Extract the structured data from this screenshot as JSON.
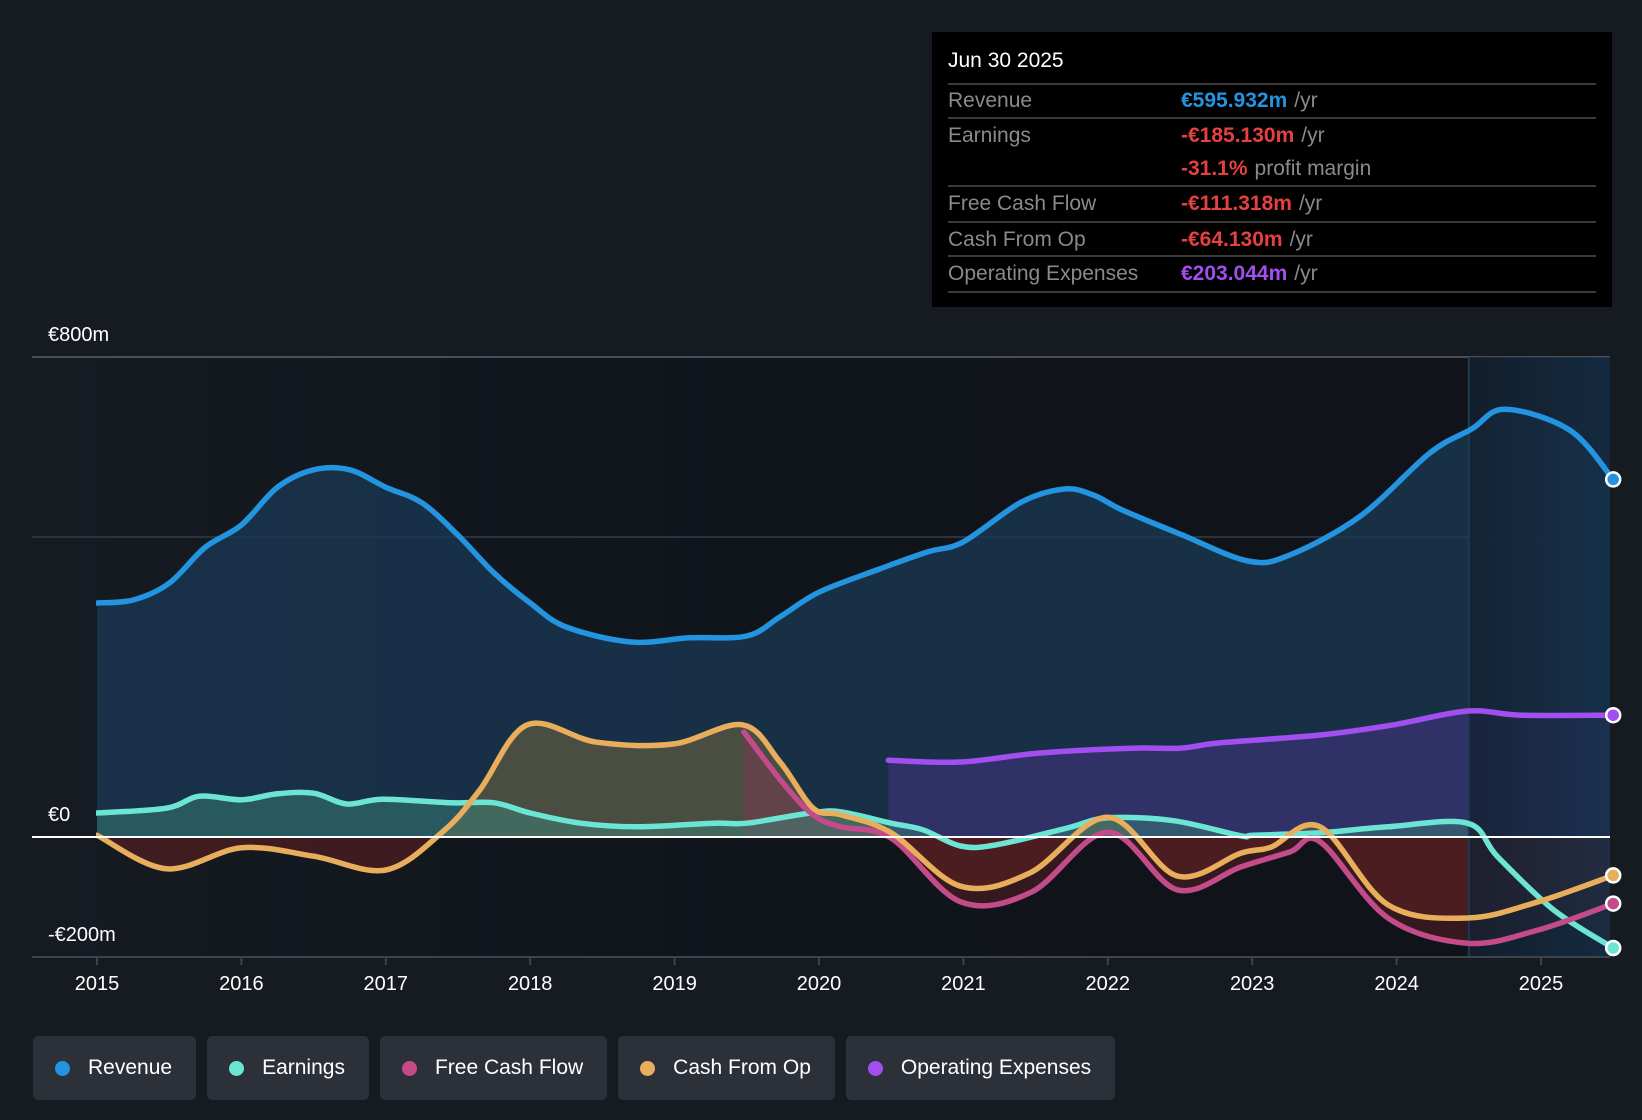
{
  "tooltip": {
    "date": "Jun 30 2025",
    "rows": [
      {
        "label": "Revenue",
        "value": "€595.932m",
        "unit": "/yr",
        "color": "#2394df"
      },
      {
        "label": "Earnings",
        "value": "-€185.130m",
        "unit": "/yr",
        "color": "#e64141"
      },
      {
        "label": "",
        "value": "-31.1%",
        "unit": "profit margin",
        "color": "#e64141"
      },
      {
        "label": "Free Cash Flow",
        "value": "-€111.318m",
        "unit": "/yr",
        "color": "#e64141"
      },
      {
        "label": "Cash From Op",
        "value": "-€64.130m",
        "unit": "/yr",
        "color": "#e64141"
      },
      {
        "label": "Operating Expenses",
        "value": "€203.044m",
        "unit": "/yr",
        "color": "#a24ef0"
      }
    ]
  },
  "legend": [
    {
      "label": "Revenue",
      "color": "#2394df"
    },
    {
      "label": "Earnings",
      "color": "#6ce5d4"
    },
    {
      "label": "Free Cash Flow",
      "color": "#c44b8a"
    },
    {
      "label": "Cash From Op",
      "color": "#e8ae5c"
    },
    {
      "label": "Operating Expenses",
      "color": "#a24ef0"
    }
  ],
  "chart_data": {
    "type": "area",
    "title": "",
    "xlabel": "",
    "ylabel": "",
    "currency": "EUR",
    "x_ticks": [
      "2015",
      "2016",
      "2017",
      "2018",
      "2019",
      "2020",
      "2021",
      "2022",
      "2023",
      "2024",
      "2025"
    ],
    "y_tick_labels": [
      {
        "value": 800,
        "label": "€800m"
      },
      {
        "value": 0,
        "label": "€0"
      },
      {
        "value": -200,
        "label": "-€200m"
      }
    ],
    "gridlines": [
      800,
      500,
      0
    ],
    "ylim": [
      -200,
      800
    ],
    "xlim": [
      2015,
      2025.5
    ],
    "highlight_period": [
      2024.5,
      2025.5
    ],
    "legend_position": "bottom-left",
    "series": [
      {
        "name": "Revenue",
        "color": "#2394df",
        "x": [
          2015.0,
          2015.25,
          2015.5,
          2015.75,
          2016.0,
          2016.25,
          2016.5,
          2016.75,
          2017.0,
          2017.25,
          2017.5,
          2017.75,
          2018.0,
          2018.25,
          2018.7,
          2019.1,
          2019.5,
          2019.73,
          2020.0,
          2020.4,
          2020.75,
          2021.0,
          2021.4,
          2021.7,
          2021.9,
          2022.1,
          2022.5,
          2022.97,
          2023.26,
          2023.75,
          2024.23,
          2024.52,
          2024.75,
          2025.2,
          2025.5
        ],
        "values": [
          390,
          395,
          423,
          483,
          520,
          583,
          612,
          612,
          583,
          557,
          503,
          440,
          390,
          350,
          325,
          332,
          335,
          367,
          408,
          445,
          475,
          492,
          558,
          580,
          570,
          545,
          505,
          460,
          470,
          535,
          640,
          680,
          713,
          678,
          596
        ]
      },
      {
        "name": "Earnings",
        "color": "#6ce5d4",
        "x": [
          2015.0,
          2015.48,
          2015.71,
          2016.0,
          2016.25,
          2016.5,
          2016.73,
          2016.98,
          2017.45,
          2017.75,
          2018.0,
          2018.35,
          2018.74,
          2019.27,
          2019.5,
          2019.94,
          2020.15,
          2020.5,
          2020.72,
          2020.98,
          2021.23,
          2021.72,
          2022.0,
          2022.46,
          2022.92,
          2023.01,
          2023.47,
          2023.94,
          2024.49,
          2024.7,
          2025.09,
          2025.5
        ],
        "values": [
          40,
          48,
          68,
          62,
          72,
          73,
          55,
          63,
          57,
          57,
          40,
          23,
          17,
          23,
          23,
          40,
          42,
          23,
          12,
          -15,
          -13,
          15,
          32,
          27,
          2,
          3,
          7,
          17,
          23,
          -33,
          -122,
          -185
        ]
      },
      {
        "name": "Free Cash Flow",
        "color": "#c44b8a",
        "x": [
          2019.48,
          2019.75,
          2019.96,
          2020.15,
          2020.5,
          2020.98,
          2021.47,
          2022.0,
          2022.48,
          2022.92,
          2023.26,
          2023.47,
          2023.94,
          2024.49,
          2024.98,
          2025.5
        ],
        "values": [
          175,
          90,
          37,
          17,
          -2,
          -108,
          -92,
          8,
          -88,
          -50,
          -25,
          -8,
          -135,
          -177,
          -155,
          -111
        ]
      },
      {
        "name": "Cash From Op",
        "color": "#e8ae5c",
        "x": [
          2015.0,
          2015.48,
          2016.0,
          2016.5,
          2017.0,
          2017.4,
          2017.65,
          2017.98,
          2018.46,
          2018.99,
          2019.47,
          2019.73,
          2019.96,
          2020.15,
          2020.5,
          2020.98,
          2021.46,
          2022.0,
          2022.48,
          2022.92,
          2023.13,
          2023.47,
          2023.94,
          2024.49,
          2024.98,
          2025.5
        ],
        "values": [
          3,
          -53,
          -18,
          -32,
          -55,
          10,
          78,
          187,
          158,
          155,
          187,
          125,
          48,
          37,
          7,
          -82,
          -60,
          33,
          -65,
          -27,
          -17,
          17,
          -113,
          -135,
          -108,
          -64
        ]
      },
      {
        "name": "Operating Expenses",
        "color": "#a24ef0",
        "x": [
          2020.48,
          2020.98,
          2021.53,
          2022.16,
          2022.5,
          2022.78,
          2023.47,
          2023.98,
          2024.49,
          2024.86,
          2025.5
        ],
        "values": [
          128,
          125,
          140,
          148,
          148,
          157,
          170,
          187,
          210,
          203,
          203
        ]
      }
    ]
  }
}
